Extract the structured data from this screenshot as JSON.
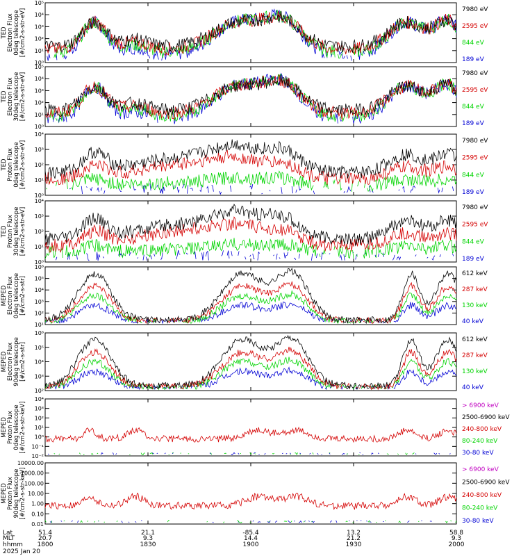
{
  "chart_data": {
    "type": "line",
    "title": "",
    "x_axis": {
      "rows": [
        {
          "label": "Lat",
          "values": [
            "51.4",
            "21.1",
            "-85.4",
            "13.2",
            "58.8"
          ]
        },
        {
          "label": "MLT",
          "values": [
            "20.7",
            "9.3",
            "14.4",
            "21.2",
            "9.3"
          ]
        },
        {
          "label": "hhmm",
          "values": [
            "1800",
            "1830",
            "1900",
            "1930",
            "2000"
          ]
        }
      ],
      "date": "2025 Jan 20",
      "time_range": [
        "1800",
        "2000"
      ]
    },
    "panels": [
      {
        "ylabel": [
          "TED",
          "Electron Flux",
          "0deg telescope",
          "[#/cm2-s-str-eV]"
        ],
        "yscale": "log",
        "ytick_labels": [
          "10⁰",
          "10¹",
          "10²",
          "10³",
          "10⁴",
          "10⁵"
        ],
        "series": [
          {
            "name": "7980 eV",
            "color": "#000000"
          },
          {
            "name": "2595 eV",
            "color": "#d40000"
          },
          {
            "name": "844 eV",
            "color": "#00d400"
          },
          {
            "name": "189 eV",
            "color": "#0000d4"
          }
        ]
      },
      {
        "ylabel": [
          "TED",
          "Electron Flux",
          "30deg telescope",
          "[#/cm2-s-str-eV]"
        ],
        "yscale": "log",
        "ytick_labels": [
          "10⁰",
          "10¹",
          "10²",
          "10³",
          "10⁴",
          "10⁵"
        ],
        "series": [
          {
            "name": "7980 eV",
            "color": "#000000"
          },
          {
            "name": "2595 eV",
            "color": "#d40000"
          },
          {
            "name": "844 eV",
            "color": "#00d400"
          },
          {
            "name": "189 eV",
            "color": "#0000d4"
          }
        ]
      },
      {
        "ylabel": [
          "TED",
          "Proton Flux",
          "0deg telescope",
          "[#/cm2-s-str-eV]"
        ],
        "yscale": "log",
        "ytick_labels": [
          "10⁰",
          "10¹",
          "10²",
          "10³",
          "10⁴"
        ],
        "series": [
          {
            "name": "7980 eV",
            "color": "#000000"
          },
          {
            "name": "2595 eV",
            "color": "#d40000"
          },
          {
            "name": "844 eV",
            "color": "#00d400"
          },
          {
            "name": "189 eV",
            "color": "#0000d4"
          }
        ]
      },
      {
        "ylabel": [
          "TED",
          "Proton Flux",
          "30deg telescope",
          "[#/cm2-s-str-eV]"
        ],
        "yscale": "log",
        "ytick_labels": [
          "10⁰",
          "10¹",
          "10²",
          "10³",
          "10⁴"
        ],
        "series": [
          {
            "name": "7980 eV",
            "color": "#000000"
          },
          {
            "name": "2595 eV",
            "color": "#d40000"
          },
          {
            "name": "844 eV",
            "color": "#00d400"
          },
          {
            "name": "189 eV",
            "color": "#0000d4"
          }
        ]
      },
      {
        "ylabel": [
          "MEPED",
          "Electron Flux",
          "0deg telescope",
          "[#/cm2-s-str]"
        ],
        "yscale": "log",
        "ytick_labels": [
          "10¹",
          "10²",
          "10³",
          "10⁴",
          "10⁵",
          "10⁶"
        ],
        "series": [
          {
            "name": "612 keV",
            "color": "#000000"
          },
          {
            "name": "287 keV",
            "color": "#d40000"
          },
          {
            "name": "130 keV",
            "color": "#00d400"
          },
          {
            "name": "40 keV",
            "color": "#0000d4"
          }
        ]
      },
      {
        "ylabel": [
          "MEPED",
          "Electron Flux",
          "90deg telescope",
          "[#/cm2-s-str]"
        ],
        "yscale": "log",
        "ytick_labels": [
          "10²",
          "10³",
          "10⁴",
          "10⁵",
          "10⁶"
        ],
        "series": [
          {
            "name": "612 keV",
            "color": "#000000"
          },
          {
            "name": "287 keV",
            "color": "#d40000"
          },
          {
            "name": "130 keV",
            "color": "#00d400"
          },
          {
            "name": "40 keV",
            "color": "#0000d4"
          }
        ]
      },
      {
        "ylabel": [
          "MEPED",
          "Proton Flux",
          "0deg telescope",
          "[#/cm2-s-str-keV]"
        ],
        "yscale": "log",
        "ytick_labels": [
          "10⁻²",
          "10⁻¹",
          "10⁰",
          "10¹",
          "10²",
          "10³",
          "10⁴"
        ],
        "series": [
          {
            "name": "> 6900 keV",
            "color": "#c000c0"
          },
          {
            "name": "2500-6900 keV",
            "color": "#000000"
          },
          {
            "name": "240-800 keV",
            "color": "#d40000"
          },
          {
            "name": "80-240 keV",
            "color": "#00d400"
          },
          {
            "name": "30-80 keV",
            "color": "#0000d4"
          }
        ]
      },
      {
        "ylabel": [
          "MEPED",
          "Proton Flux",
          "90deg telescope",
          "[#/cm2-s-str-keV]"
        ],
        "yscale": "log",
        "ytick_labels": [
          "0.01",
          "0.10",
          "1.00",
          "10.00",
          "100.00",
          "1000.00",
          "10000.00"
        ],
        "series": [
          {
            "name": "> 6900 keV",
            "color": "#c000c0"
          },
          {
            "name": "2500-6900 keV",
            "color": "#000000"
          },
          {
            "name": "240-800 keV",
            "color": "#d40000"
          },
          {
            "name": "80-240 keV",
            "color": "#00d400"
          },
          {
            "name": "30-80 keV",
            "color": "#0000d4"
          }
        ]
      }
    ]
  }
}
